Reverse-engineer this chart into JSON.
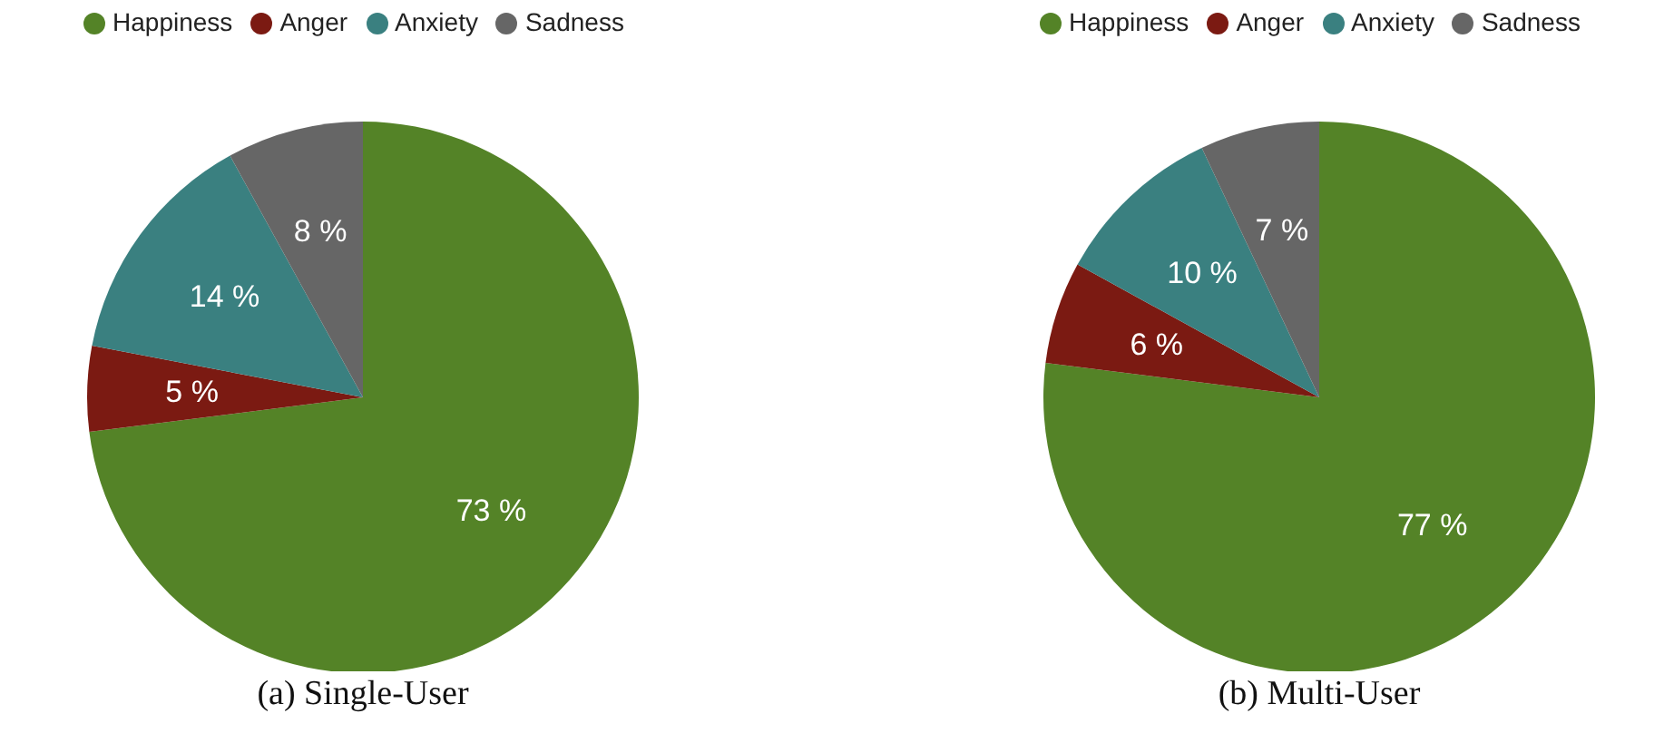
{
  "chart_data": [
    {
      "type": "pie",
      "title": "(a) Single-User",
      "categories": [
        "Happiness",
        "Anger",
        "Anxiety",
        "Sadness"
      ],
      "values": [
        73,
        5,
        14,
        8
      ],
      "value_labels": [
        "73 %",
        "5 %",
        "14 %",
        "8 %"
      ],
      "colors": [
        "#548327",
        "#7b1a12",
        "#3a8080",
        "#666666"
      ],
      "legend": "top"
    },
    {
      "type": "pie",
      "title": "(b) Multi-User",
      "categories": [
        "Happiness",
        "Anger",
        "Anxiety",
        "Sadness"
      ],
      "values": [
        77,
        6,
        10,
        7
      ],
      "value_labels": [
        "77 %",
        "6 %",
        "10 %",
        "7 %"
      ],
      "colors": [
        "#548327",
        "#7b1a12",
        "#3a8080",
        "#666666"
      ],
      "legend": "top"
    }
  ]
}
